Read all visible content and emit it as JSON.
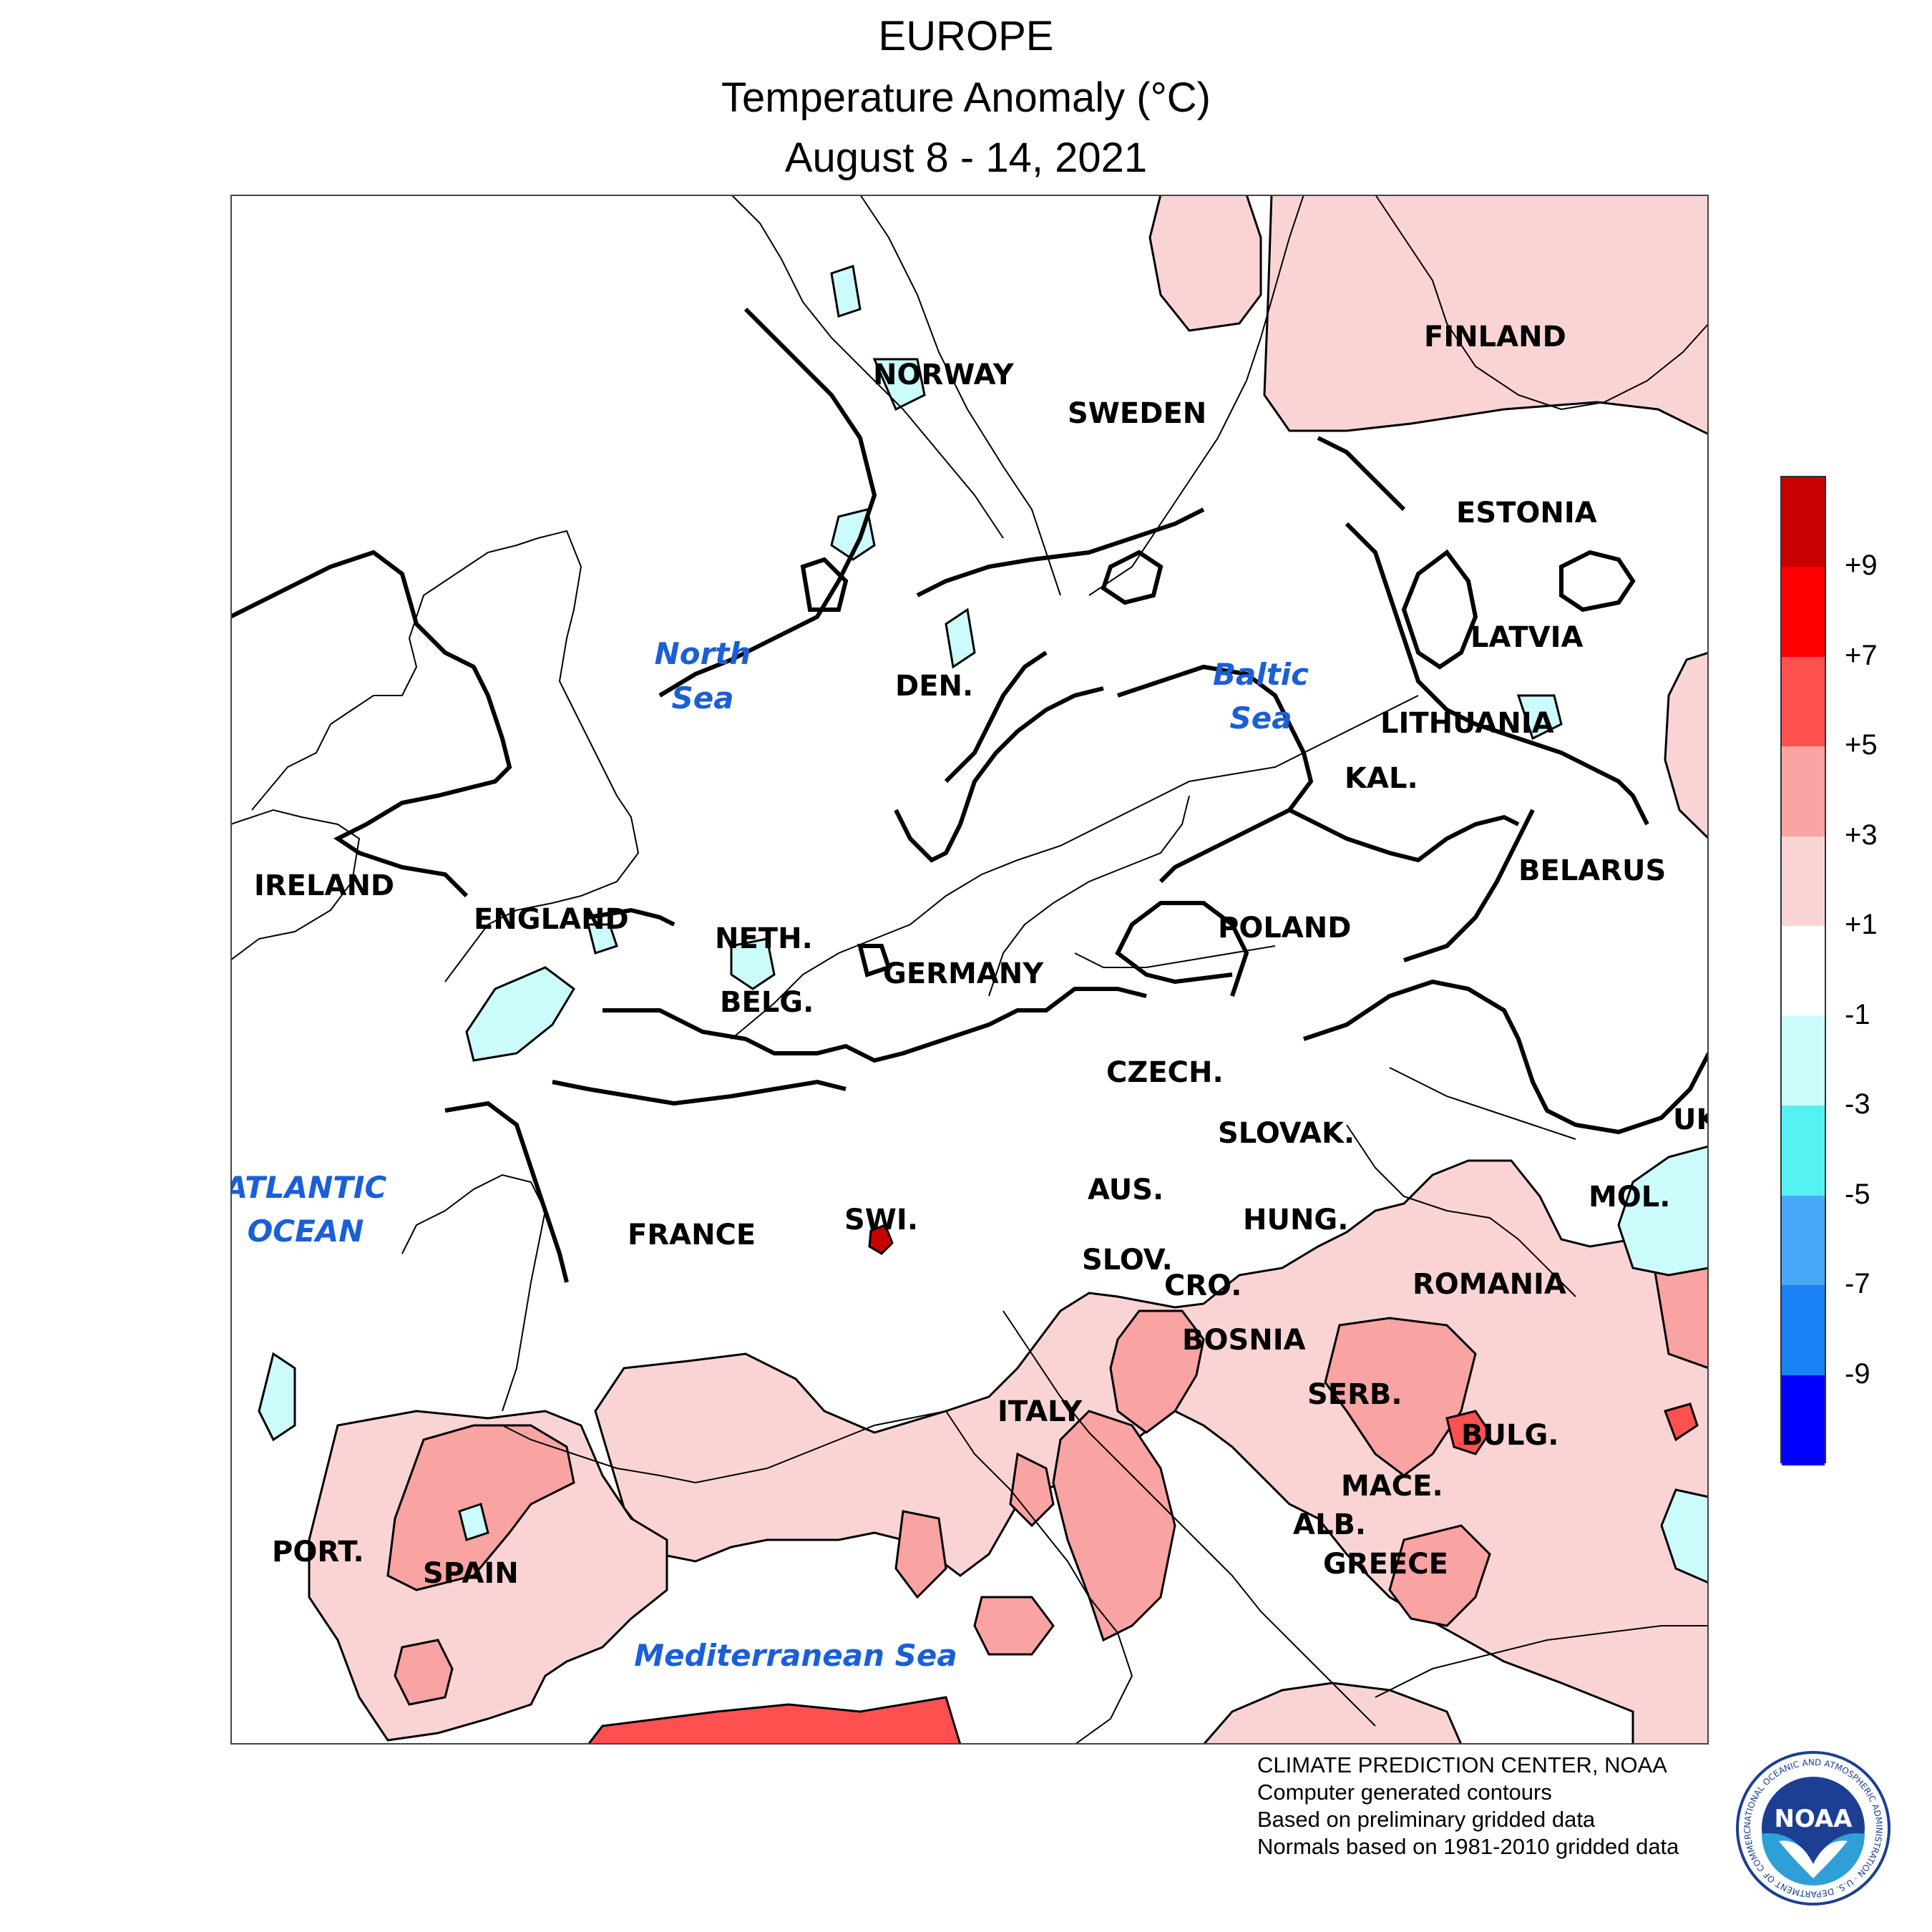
{
  "title": {
    "line1": "EUROPE",
    "line2": "Temperature Anomaly (°C)",
    "line3": "August 8 - 14, 2021"
  },
  "map": {
    "countries": {
      "finland": "FINLAND",
      "norway": "NORWAY",
      "sweden": "SWEDEN",
      "estonia": "ESTONIA",
      "latvia": "LATVIA",
      "lithuania": "LITHUANIA",
      "kal": "KAL.",
      "belarus": "BELARUS",
      "den": "DEN.",
      "ireland": "IRELAND",
      "england": "ENGLAND",
      "neth": "NETH.",
      "belg": "BELG.",
      "germany": "GERMANY",
      "poland": "POLAND",
      "czech": "CZECH.",
      "slovak": "SLOVAK.",
      "uk": "UK",
      "mol": "MOL.",
      "aus": "AUS.",
      "hung": "HUNG.",
      "france": "FRANCE",
      "swi": "SWI.",
      "slov": "SLOV.",
      "cro": "CRO.",
      "romania": "ROMANIA",
      "bosnia": "BOSNIA",
      "serb": "SERB.",
      "bulg": "BULG.",
      "italy": "ITALY",
      "mace": "MACE.",
      "alb": "ALB.",
      "greece": "GREECE",
      "port": "PORT.",
      "spain": "SPAIN"
    },
    "seas": {
      "north_sea_1": "North",
      "north_sea_2": "Sea",
      "baltic_sea_1": "Baltic",
      "baltic_sea_2": "Sea",
      "atlantic_1": "ATLANTIC",
      "atlantic_2": "OCEAN",
      "mediterranean": "Mediterranean Sea"
    }
  },
  "legend": {
    "bins": [
      {
        "color": "#c80000"
      },
      {
        "color": "#ff0000"
      },
      {
        "color": "#ff5050"
      },
      {
        "color": "#f9a3a3"
      },
      {
        "color": "#fad4d4"
      },
      {
        "color": "#ffffff"
      },
      {
        "color": "#ccfbfb"
      },
      {
        "color": "#55f2f2"
      },
      {
        "color": "#4aa8f9"
      },
      {
        "color": "#1a82f5"
      },
      {
        "color": "#0000ff"
      }
    ],
    "ticks": [
      "+9",
      "+7",
      "+5",
      "+3",
      "+1",
      "-1",
      "-3",
      "-5",
      "-7",
      "-9"
    ]
  },
  "credits": {
    "line1": "CLIMATE PREDICTION CENTER, NOAA",
    "line2": "Computer generated contours",
    "line3": "Based on preliminary gridded data",
    "line4": "Normals based on 1981-2010 gridded data"
  },
  "logo": {
    "text": "NOAA",
    "ring": "NATIONAL OCEANIC AND ATMOSPHERIC ADMINISTRATION · U.S. DEPARTMENT OF COMMERCE"
  }
}
